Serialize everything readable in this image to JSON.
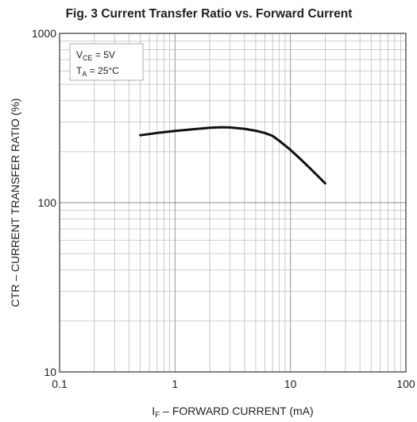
{
  "chart_data": {
    "type": "line",
    "title": "Fig. 3 Current Transfer Ratio vs. Forward Current",
    "xlabel": {
      "prefix": "I",
      "sub": "F",
      "suffix": " – FORWARD CURRENT (mA)"
    },
    "ylabel": "CTR – CURRENT TRANSFER RATIO (%)",
    "x_scale": "log",
    "y_scale": "log",
    "xlim": [
      0.1,
      100
    ],
    "ylim": [
      10,
      1000
    ],
    "x_ticks": [
      {
        "value": 0.1,
        "label": "0.1"
      },
      {
        "value": 1,
        "label": "1"
      },
      {
        "value": 10,
        "label": "10"
      },
      {
        "value": 100,
        "label": "100"
      }
    ],
    "y_ticks": [
      {
        "value": 10,
        "label": "10"
      },
      {
        "value": 100,
        "label": "100"
      },
      {
        "value": 1000,
        "label": "1000"
      }
    ],
    "grid": true,
    "legend_placement": "top-left",
    "conditions": [
      {
        "main": "V",
        "sub": "CE",
        "rest": " = 5V"
      },
      {
        "main": "T",
        "sub": "A",
        "rest": " = 25°C"
      }
    ],
    "series": [
      {
        "x": [
          0.5,
          0.7,
          1,
          1.5,
          2,
          2.5,
          3,
          4,
          5,
          6,
          7,
          8,
          10,
          12,
          15,
          20
        ],
        "y": [
          250,
          258,
          265,
          272,
          277,
          279,
          278,
          273,
          266,
          258,
          248,
          232,
          205,
          183,
          158,
          130
        ]
      }
    ],
    "colors": {
      "curve": "#111111",
      "frame": "#333333",
      "grid_major": "#8c8c8c",
      "grid_minor": "#bdbdbd"
    }
  }
}
